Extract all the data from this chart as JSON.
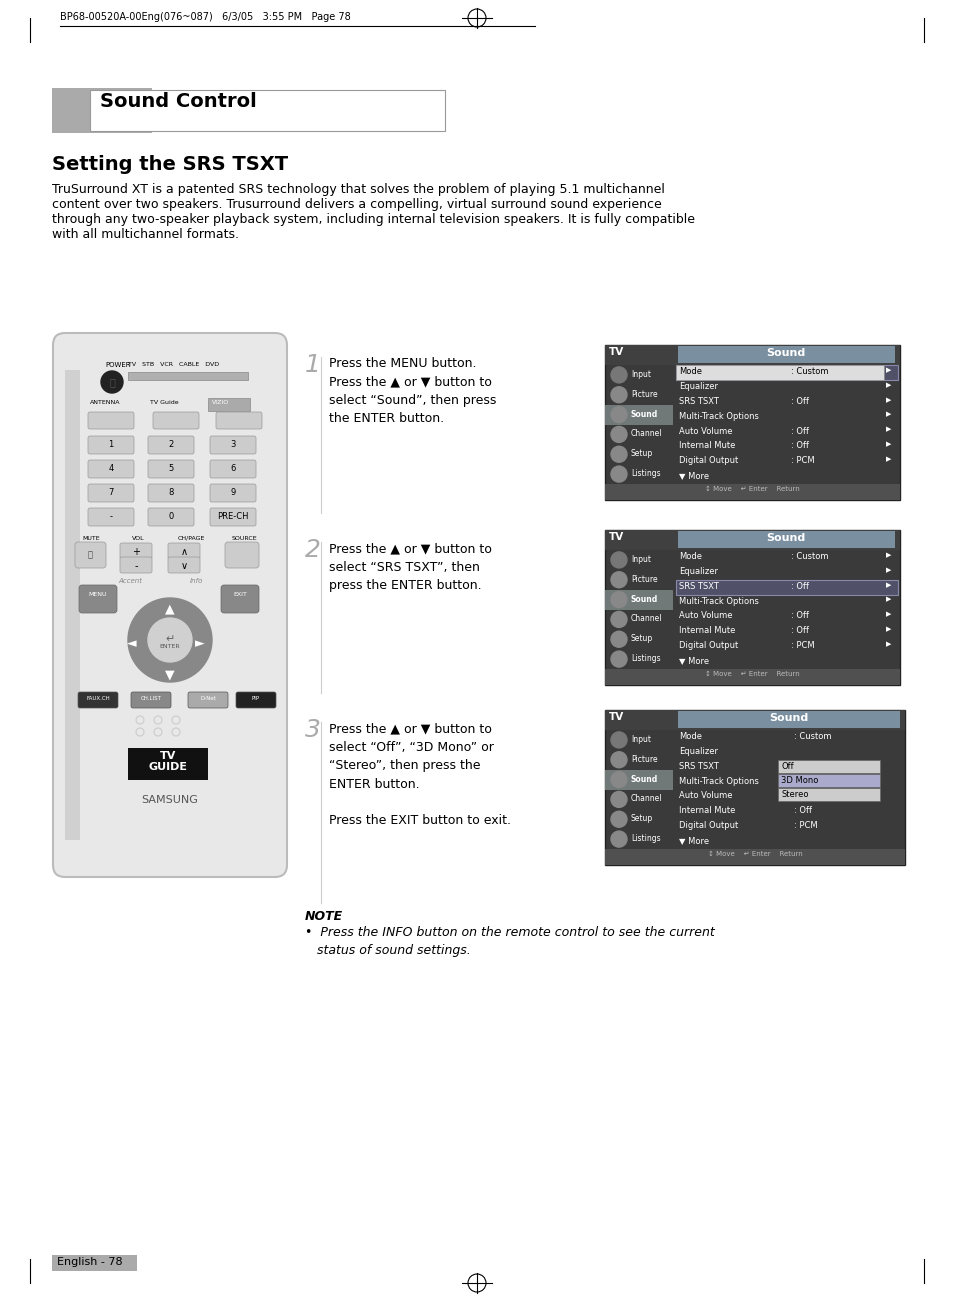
{
  "bg_color": "#ffffff",
  "header_text": "BP68-00520A-00Eng(076~087)   6/3/05   3:55 PM   Page 78",
  "title_text": "Sound Control",
  "section_title": "Setting the SRS TSXT",
  "body_text_lines": [
    "TruSurround XT is a patented SRS technology that solves the problem of playing 5.1 multichannel",
    "content over two speakers. Trusurround delivers a compelling, virtual surround sound experience",
    "through any two-speaker playback system, including internal television speakers. It is fully compatible",
    "with all multichannel formats."
  ],
  "step1_num": "1",
  "step1_text": "Press the MENU button.\nPress the ▲ or ▼ button to\nselect “Sound”, then press\nthe ENTER button.",
  "step2_num": "2",
  "step2_text": "Press the ▲ or ▼ button to\nselect “SRS TSXT”, then\npress the ENTER button.",
  "step3_num": "3",
  "step3_text": "Press the ▲ or ▼ button to\nselect “Off”, “3D Mono” or\n“Stereo”, then press the\nENTER button.\n\nPress the EXIT button to exit.",
  "note_title": "NOTE",
  "note_text": "•  Press the INFO button on the remote control to see the current\n   status of sound settings.",
  "footer_text": "English - 78",
  "menu1_items": [
    [
      "Mode",
      ": Custom",
      true,
      true
    ],
    [
      "Equalizer",
      "",
      false,
      true
    ],
    [
      "SRS TSXT",
      ": Off",
      false,
      true
    ],
    [
      "Multi-Track Options",
      "",
      false,
      true
    ],
    [
      "Auto Volume",
      ": Off",
      false,
      true
    ],
    [
      "Internal Mute",
      ": Off",
      false,
      true
    ],
    [
      "Digital Output",
      ": PCM",
      false,
      true
    ],
    [
      "▼ More",
      "",
      false,
      false
    ]
  ],
  "menu2_items": [
    [
      "Mode",
      ": Custom",
      false,
      true
    ],
    [
      "Equalizer",
      "",
      false,
      true
    ],
    [
      "SRS TSXT",
      ": Off",
      true,
      true
    ],
    [
      "Multi-Track Options",
      "",
      false,
      true
    ],
    [
      "Auto Volume",
      ": Off",
      false,
      true
    ],
    [
      "Internal Mute",
      ": Off",
      false,
      true
    ],
    [
      "Digital Output",
      ": PCM",
      false,
      true
    ],
    [
      "▼ More",
      "",
      false,
      false
    ]
  ],
  "menu3_items": [
    [
      "Mode",
      ": Custom",
      false,
      false
    ],
    [
      "Equalizer",
      "",
      false,
      false
    ],
    [
      "SRS TSXT",
      "",
      false,
      false
    ],
    [
      "Multi-Track Options",
      "",
      false,
      false
    ],
    [
      "Auto Volume",
      "",
      false,
      false
    ],
    [
      "Internal Mute",
      ": Off",
      false,
      false
    ],
    [
      "Digital Output",
      ": PCM",
      false,
      false
    ],
    [
      "▼ More",
      "",
      false,
      false
    ]
  ],
  "menu3_popup": [
    "Off",
    "3D Mono",
    "Stereo"
  ],
  "sidebar_items": [
    "Input",
    "Picture",
    "Sound",
    "Channel",
    "Setup",
    "Listings"
  ],
  "menu_dark_bg": "#3a3a3a",
  "menu_header_bg": "#7a8fa0",
  "menu_sidebar_bg": "#606060",
  "menu_sound_bg": "#4a5a68",
  "menu_selected_bg": "#4a4a70",
  "menu_nav_bg": "#505050"
}
